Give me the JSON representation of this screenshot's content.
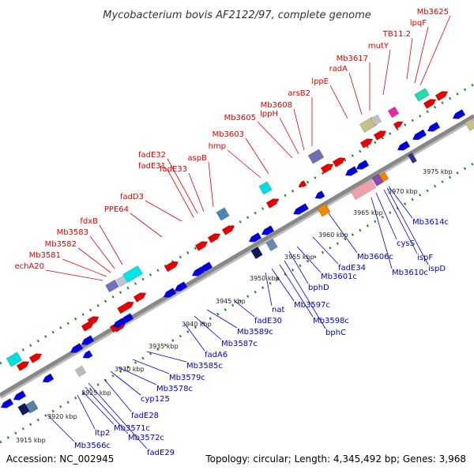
{
  "title": "Mycobacterium bovis AF2122/97, complete genome",
  "footer": {
    "accession": "Accession: NC_002945",
    "topology": "Topology: circular; Length: 4,345,492 bp; Genes: 3,968"
  },
  "colors": {
    "forward_strand": "#e60000",
    "reverse_strand": "#0000dd",
    "forward_label": "#dd0000",
    "reverse_label": "#0000cc",
    "backbone": "#888888",
    "dots": "#228822"
  },
  "ticks": [
    "3915 kbp",
    "3920 kbp",
    "3925 kbp",
    "3930 kbp",
    "3935 kbp",
    "3940 kbp",
    "3945 kbp",
    "3950 kbp",
    "3955 kbp",
    "3960 kbp",
    "3965 kbp",
    "3970 kbp",
    "3975 kbp"
  ],
  "forward_genes": [
    "echA20",
    "Mb3581",
    "Mb3582",
    "Mb3583",
    "fdxB",
    "PPE64",
    "fadD3",
    "fadE31",
    "fadE32",
    "fadE33",
    "aspB",
    "hmp",
    "Mb3603",
    "Mb3605",
    "lppH",
    "Mb3608",
    "arsB2",
    "lppE",
    "radA",
    "Mb3617",
    "mutY",
    "TB11.2",
    "lpqF",
    "Mb3625"
  ],
  "reverse_genes": [
    "Mb3566c",
    "ltp2",
    "Mb3571c",
    "Mb3572c",
    "fadE29",
    "fadE28",
    "cyp125",
    "Mb3578c",
    "Mb3579c",
    "Mb3585c",
    "fadA6",
    "Mb3587c",
    "Mb3589c",
    "fadE30",
    "nat",
    "Mb3597c",
    "Mb3598c",
    "bphC",
    "bphD",
    "Mb3601c",
    "fadE34",
    "Mb3606c",
    "Mb3610c",
    "cysS",
    "ispF",
    "ispD",
    "Mb3614c"
  ]
}
